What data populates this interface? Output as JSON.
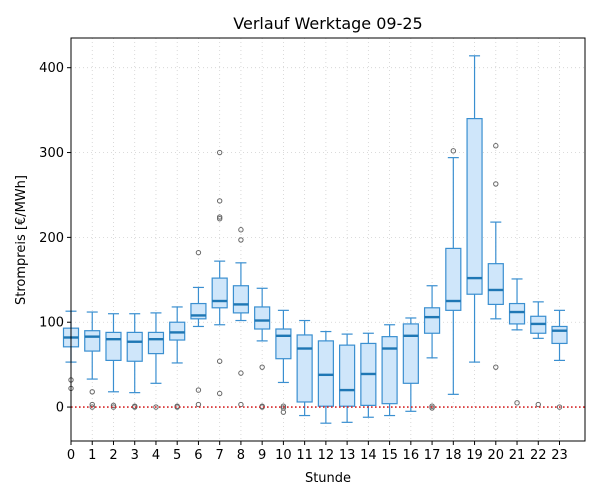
{
  "chart_data": {
    "type": "box",
    "title": "Verlauf Werktage 09-25",
    "xlabel": "Stunde",
    "ylabel": "Strompreis [€/MWh]",
    "categories": [
      "0",
      "1",
      "2",
      "3",
      "4",
      "5",
      "6",
      "7",
      "8",
      "9",
      "10",
      "11",
      "12",
      "13",
      "14",
      "15",
      "16",
      "17",
      "18",
      "19",
      "20",
      "21",
      "22",
      "23"
    ],
    "xlim": [
      0,
      24.2
    ],
    "ylim": [
      -40,
      435
    ],
    "yticks": [
      0,
      100,
      200,
      300,
      400
    ],
    "grid": true,
    "reference_line": {
      "y": 0,
      "color": "#d62728",
      "style": "dotted"
    },
    "colors": {
      "box_fill": "#cfe6fa",
      "box_edge": "#3a8fd0",
      "median": "#1f77b4",
      "outlier": "#666666"
    },
    "boxes": [
      {
        "x": 0,
        "whisker_low": 53,
        "q1": 71,
        "median": 82,
        "q3": 93,
        "whisker_high": 113,
        "outliers": [
          22,
          32
        ]
      },
      {
        "x": 1,
        "whisker_low": 33,
        "q1": 66,
        "median": 83,
        "q3": 90,
        "whisker_high": 112,
        "outliers": [
          18,
          3,
          0
        ]
      },
      {
        "x": 2,
        "whisker_low": 18,
        "q1": 55,
        "median": 80,
        "q3": 88,
        "whisker_high": 110,
        "outliers": [
          2,
          0
        ]
      },
      {
        "x": 3,
        "whisker_low": 17,
        "q1": 54,
        "median": 77,
        "q3": 88,
        "whisker_high": 110,
        "outliers": [
          1,
          0
        ]
      },
      {
        "x": 4,
        "whisker_low": 28,
        "q1": 63,
        "median": 80,
        "q3": 88,
        "whisker_high": 111,
        "outliers": [
          0
        ]
      },
      {
        "x": 5,
        "whisker_low": 52,
        "q1": 79,
        "median": 88,
        "q3": 100,
        "whisker_high": 118,
        "outliers": [
          1,
          0
        ]
      },
      {
        "x": 6,
        "whisker_low": 95,
        "q1": 104,
        "median": 108,
        "q3": 122,
        "whisker_high": 141,
        "outliers": [
          182,
          20,
          3
        ]
      },
      {
        "x": 7,
        "whisker_low": 97,
        "q1": 117,
        "median": 125,
        "q3": 152,
        "whisker_high": 172,
        "outliers": [
          300,
          243,
          224,
          222,
          54,
          16
        ]
      },
      {
        "x": 8,
        "whisker_low": 102,
        "q1": 111,
        "median": 121,
        "q3": 143,
        "whisker_high": 170,
        "outliers": [
          209,
          197,
          40,
          3
        ]
      },
      {
        "x": 9,
        "whisker_low": 78,
        "q1": 92,
        "median": 102,
        "q3": 118,
        "whisker_high": 140,
        "outliers": [
          47,
          1,
          0
        ]
      },
      {
        "x": 10,
        "whisker_low": 29,
        "q1": 57,
        "median": 84,
        "q3": 92,
        "whisker_high": 114,
        "outliers": [
          1,
          -1,
          -6
        ]
      },
      {
        "x": 11,
        "whisker_low": -10,
        "q1": 6,
        "median": 69,
        "q3": 85,
        "whisker_high": 102,
        "outliers": []
      },
      {
        "x": 12,
        "whisker_low": -19,
        "q1": 1,
        "median": 38,
        "q3": 78,
        "whisker_high": 89,
        "outliers": []
      },
      {
        "x": 13,
        "whisker_low": -18,
        "q1": 1,
        "median": 20,
        "q3": 73,
        "whisker_high": 86,
        "outliers": []
      },
      {
        "x": 14,
        "whisker_low": -12,
        "q1": 2,
        "median": 39,
        "q3": 75,
        "whisker_high": 87,
        "outliers": []
      },
      {
        "x": 15,
        "whisker_low": -10,
        "q1": 4,
        "median": 69,
        "q3": 83,
        "whisker_high": 97,
        "outliers": []
      },
      {
        "x": 16,
        "whisker_low": -5,
        "q1": 28,
        "median": 84,
        "q3": 98,
        "whisker_high": 105,
        "outliers": []
      },
      {
        "x": 17,
        "whisker_low": 58,
        "q1": 87,
        "median": 106,
        "q3": 117,
        "whisker_high": 143,
        "outliers": [
          1,
          -1
        ]
      },
      {
        "x": 18,
        "whisker_low": 15,
        "q1": 114,
        "median": 125,
        "q3": 187,
        "whisker_high": 294,
        "outliers": [
          302
        ]
      },
      {
        "x": 19,
        "whisker_low": 53,
        "q1": 133,
        "median": 152,
        "q3": 340,
        "whisker_high": 414,
        "outliers": []
      },
      {
        "x": 20,
        "whisker_low": 104,
        "q1": 121,
        "median": 138,
        "q3": 169,
        "whisker_high": 218,
        "outliers": [
          308,
          263,
          47
        ]
      },
      {
        "x": 21,
        "whisker_low": 91,
        "q1": 98,
        "median": 112,
        "q3": 122,
        "whisker_high": 151,
        "outliers": [
          5
        ]
      },
      {
        "x": 22,
        "whisker_low": 81,
        "q1": 87,
        "median": 98,
        "q3": 107,
        "whisker_high": 124,
        "outliers": [
          3
        ]
      },
      {
        "x": 23,
        "whisker_low": 55,
        "q1": 75,
        "median": 90,
        "q3": 95,
        "whisker_high": 114,
        "outliers": [
          0
        ]
      }
    ]
  }
}
